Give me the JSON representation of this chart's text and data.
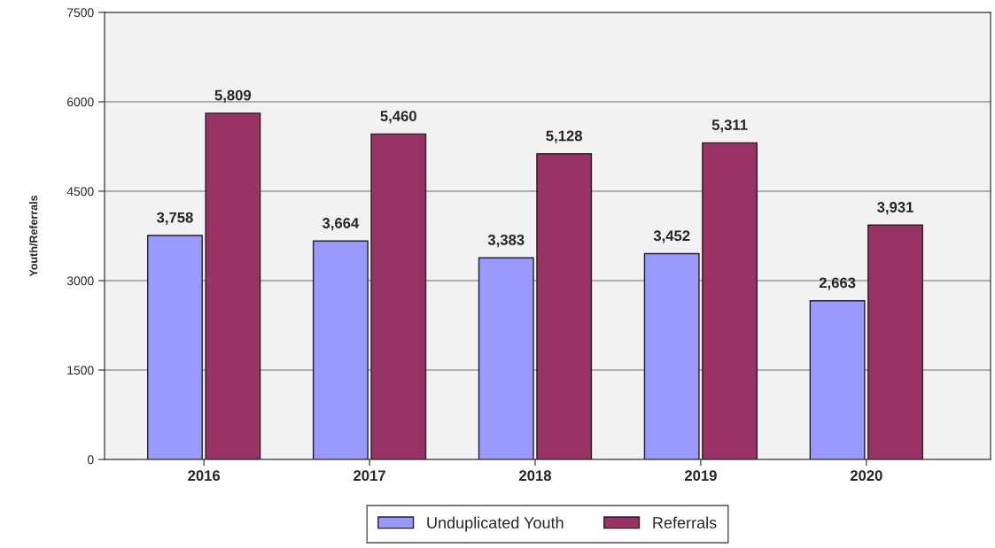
{
  "chart_data": {
    "type": "bar",
    "ylabel": "Youth/Referrals",
    "categories": [
      "2016",
      "2017",
      "2018",
      "2019",
      "2020"
    ],
    "series": [
      {
        "name": "Unduplicated Youth",
        "color": "#9999ff",
        "values": [
          3758,
          3664,
          3383,
          3452,
          2663
        ],
        "value_labels": [
          "3,758",
          "3,664",
          "3,383",
          "3,452",
          "2,663"
        ]
      },
      {
        "name": "Referrals",
        "color": "#993366",
        "values": [
          5809,
          5460,
          5128,
          5311,
          3931
        ],
        "value_labels": [
          "5,809",
          "5,460",
          "5,128",
          "5,311",
          "3,931"
        ]
      }
    ],
    "ylim": [
      0,
      7500
    ],
    "yticks": [
      0,
      1500,
      3000,
      4500,
      6000,
      7500
    ],
    "grid": "y",
    "legend": "bottom"
  }
}
